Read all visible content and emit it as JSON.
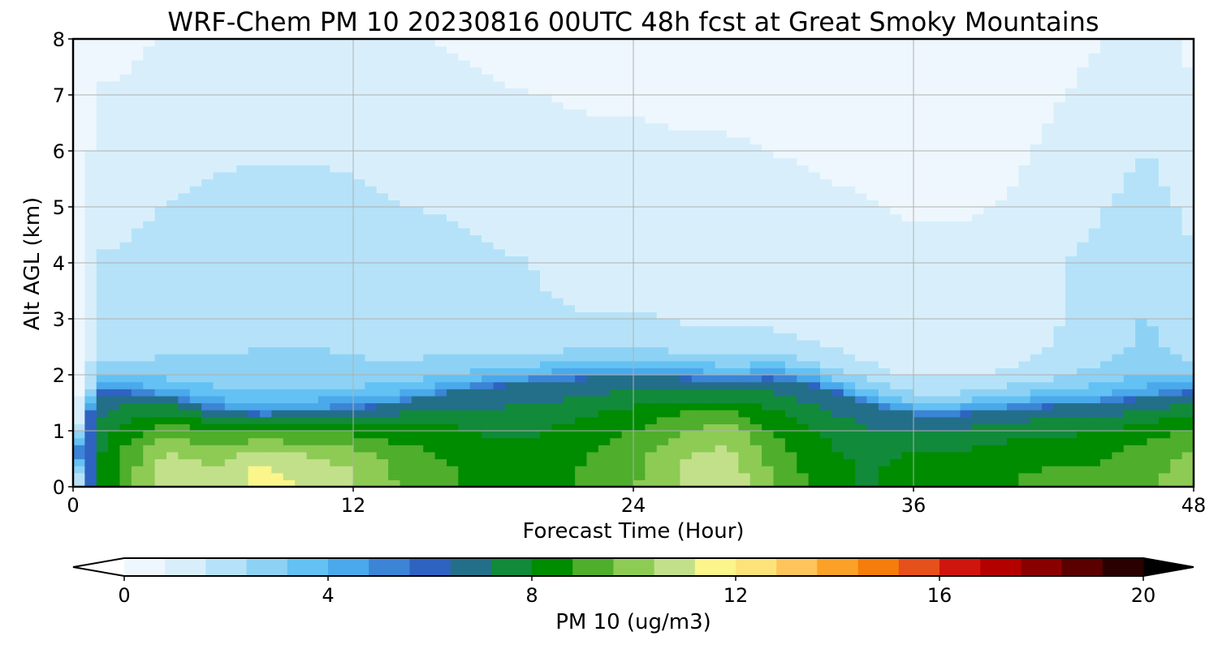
{
  "chart_data": {
    "type": "heatmap",
    "title": "WRF-Chem PM 10  20230816 00UTC 48h fcst at Great Smoky Mountains",
    "xlabel": "Forecast Time (Hour)",
    "ylabel": "Alt AGL (km)",
    "xlim": [
      0,
      48
    ],
    "ylim": [
      0,
      8
    ],
    "xticks": [
      "0",
      "12",
      "24",
      "36",
      "48"
    ],
    "yticks": [
      "0",
      "1",
      "2",
      "3",
      "4",
      "5",
      "6",
      "7",
      "8"
    ],
    "grid": true,
    "colorbar": {
      "label": "PM 10  (ug/m3)",
      "range": [
        0,
        20
      ],
      "ticks": [
        "0",
        "4",
        "8",
        "12",
        "16",
        "20"
      ],
      "extend": "both",
      "colors": [
        "#ffffff",
        "#eef7fd",
        "#d8effb",
        "#b5e2f8",
        "#8dd2f5",
        "#63c1f3",
        "#4aa9ea",
        "#3b84d6",
        "#2f63c2",
        "#236f8a",
        "#118a3a",
        "#008c00",
        "#4fae2c",
        "#8dcb55",
        "#c2e08a",
        "#fbf58b",
        "#fde27a",
        "#fcc45a",
        "#fba127",
        "#f67d0b",
        "#e6501a",
        "#d0150f",
        "#b50000",
        "#8a0000",
        "#5a0000",
        "#2a0000",
        "#000000"
      ]
    },
    "forecast_hours": [
      0,
      1,
      2,
      4,
      6,
      8,
      10,
      12,
      14,
      16,
      18,
      20,
      22,
      24,
      26,
      28,
      30,
      32,
      34,
      36,
      38,
      40,
      42,
      44,
      46,
      48
    ],
    "altitudes_km": [
      0,
      0.25,
      0.5,
      0.75,
      1.0,
      1.25,
      1.5,
      1.75,
      2.0,
      2.5,
      3.0,
      3.5,
      4.0,
      5.0,
      6.0,
      7.0,
      8.0
    ],
    "pm10_profile": {
      "surface_peak_ugm3": [
        0.5,
        8,
        9,
        11,
        10.5,
        11.5,
        11,
        10.5,
        9.5,
        9,
        8.5,
        8.5,
        9,
        9.5,
        10.5,
        11,
        9.5,
        8.5,
        8,
        8.5,
        8.5,
        8.8,
        9,
        9,
        9.5,
        10
      ],
      "mixing_layer_top_km": [
        0.3,
        1.7,
        1.7,
        1.6,
        1.4,
        1.3,
        1.35,
        1.4,
        1.5,
        1.7,
        1.8,
        1.9,
        1.95,
        2.0,
        1.95,
        1.9,
        1.95,
        1.8,
        1.5,
        1.3,
        1.3,
        1.4,
        1.45,
        1.5,
        1.6,
        1.7
      ],
      "aloft_ugm3": [
        0.5,
        2.0,
        2.0,
        2.3,
        2.5,
        2.6,
        2.6,
        2.5,
        2.3,
        2.2,
        2.0,
        1.9,
        1.8,
        1.8,
        1.7,
        1.7,
        1.6,
        1.5,
        1.4,
        1.3,
        1.3,
        1.4,
        1.8,
        2.2,
        2.7,
        2.0
      ]
    }
  }
}
